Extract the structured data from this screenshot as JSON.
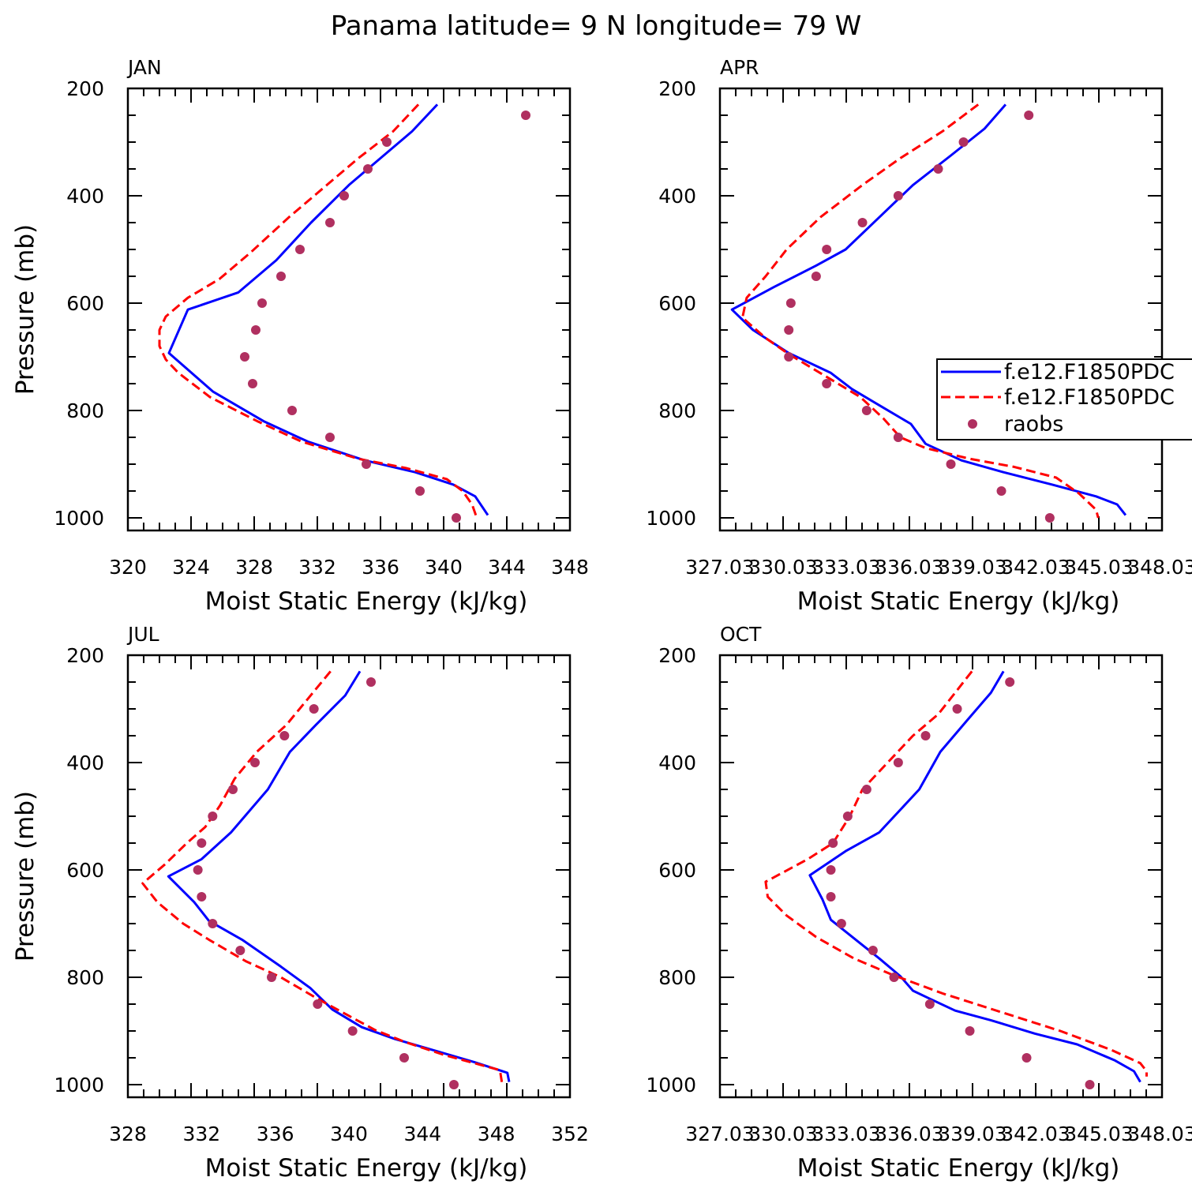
{
  "title": "Panama  latitude= 9 N longitude= 79 W",
  "colors": {
    "model1": "#0000ff",
    "model2": "#ff0000",
    "raobs": "#b03060",
    "frame": "#000000"
  },
  "legend": {
    "placement": "right, inside APR panel",
    "entries": [
      "f.e12.F1850PDC",
      "f.e12.F1850PDC",
      "raobs"
    ]
  },
  "chart_data": [
    {
      "type": "line",
      "panel": "JAN",
      "title": "JAN",
      "xlabel": "Moist Static Energy (kJ/kg)",
      "ylabel": "Pressure (mb)",
      "xlim": [
        320,
        348
      ],
      "ylim": [
        1000,
        200
      ],
      "xticks": [
        "320",
        "324",
        "328",
        "332",
        "336",
        "340",
        "344",
        "348"
      ],
      "yticks": [
        "200",
        "400",
        "600",
        "800",
        "1000"
      ],
      "series": [
        {
          "name": "f.e12.F1850PDC",
          "style": "solid-blue",
          "points": [
            [
              339.6,
              230
            ],
            [
              338,
              280
            ],
            [
              336,
              330
            ],
            [
              334,
              380
            ],
            [
              331.6,
              450
            ],
            [
              329.4,
              520
            ],
            [
              327,
              580
            ],
            [
              323.8,
              612
            ],
            [
              322.6,
              693
            ],
            [
              325.4,
              765
            ],
            [
              328.6,
              820
            ],
            [
              331.4,
              858
            ],
            [
              335,
              893
            ],
            [
              338.2,
              915
            ],
            [
              340.6,
              938
            ],
            [
              342,
              960
            ],
            [
              342.8,
              995
            ]
          ]
        },
        {
          "name": "f.e12.F1850PDC",
          "style": "dashed-red",
          "points": [
            [
              338.4,
              230
            ],
            [
              336.8,
              280
            ],
            [
              334.6,
              330
            ],
            [
              332.6,
              380
            ],
            [
              330.2,
              440
            ],
            [
              327.8,
              505
            ],
            [
              325.8,
              555
            ],
            [
              323.8,
              590
            ],
            [
              322.4,
              625
            ],
            [
              322,
              650
            ],
            [
              322,
              680
            ],
            [
              322.4,
              705
            ],
            [
              323.2,
              730
            ],
            [
              325.2,
              775
            ],
            [
              328.2,
              820
            ],
            [
              331,
              858
            ],
            [
              334.6,
              890
            ],
            [
              337.6,
              907
            ],
            [
              340.2,
              928
            ],
            [
              341.2,
              950
            ],
            [
              341.8,
              975
            ],
            [
              342.1,
              1000
            ]
          ]
        },
        {
          "name": "raobs",
          "style": "dots",
          "points": [
            [
              345.2,
              250
            ],
            [
              336.4,
              300
            ],
            [
              335.2,
              350
            ],
            [
              333.7,
              400
            ],
            [
              332.8,
              450
            ],
            [
              330.9,
              500
            ],
            [
              329.7,
              550
            ],
            [
              328.5,
              600
            ],
            [
              328.1,
              650
            ],
            [
              327.4,
              700
            ],
            [
              327.9,
              750
            ],
            [
              330.4,
              800
            ],
            [
              332.8,
              850
            ],
            [
              335.1,
              900
            ],
            [
              338.5,
              950
            ],
            [
              340.8,
              1000
            ]
          ]
        }
      ]
    },
    {
      "type": "line",
      "panel": "APR",
      "title": "APR",
      "xlabel": "Moist Static Energy (kJ/kg)",
      "ylabel": "",
      "xlim": [
        327.03,
        348.03
      ],
      "ylim": [
        1000,
        200
      ],
      "xticks": [
        "327.03",
        "330.03",
        "333.03",
        "336.03",
        "339.03",
        "342.03",
        "345.03",
        "348.03"
      ],
      "yticks": [
        "200",
        "400",
        "600",
        "800",
        "1000"
      ],
      "series": [
        {
          "name": "f.e12.F1850PDC",
          "style": "solid-blue",
          "points": [
            [
              340.6,
              230
            ],
            [
              339.6,
              275
            ],
            [
              338,
              325
            ],
            [
              336.2,
              380
            ],
            [
              334.6,
              440
            ],
            [
              333,
              500
            ],
            [
              331.6,
              530
            ],
            [
              329.6,
              570
            ],
            [
              327.6,
              612
            ],
            [
              328.6,
              650
            ],
            [
              330.3,
              693
            ],
            [
              332.3,
              730
            ],
            [
              333.3,
              760
            ],
            [
              334.8,
              795
            ],
            [
              336.1,
              825
            ],
            [
              336.8,
              862
            ],
            [
              338.5,
              893
            ],
            [
              340.5,
              915
            ],
            [
              342.8,
              938
            ],
            [
              344.9,
              960
            ],
            [
              345.9,
              975
            ],
            [
              346.3,
              995
            ]
          ]
        },
        {
          "name": "f.e12.F1850PDC",
          "style": "dashed-red",
          "points": [
            [
              339.3,
              230
            ],
            [
              337.6,
              280
            ],
            [
              335.6,
              330
            ],
            [
              333.8,
              380
            ],
            [
              331.8,
              440
            ],
            [
              330.2,
              500
            ],
            [
              329.2,
              550
            ],
            [
              328.3,
              590
            ],
            [
              328.1,
              627
            ],
            [
              329.2,
              665
            ],
            [
              330.3,
              695
            ],
            [
              332,
              735
            ],
            [
              333.7,
              775
            ],
            [
              334.8,
              815
            ],
            [
              335.6,
              850
            ],
            [
              336.8,
              870
            ],
            [
              338.9,
              890
            ],
            [
              341,
              905
            ],
            [
              343,
              925
            ],
            [
              344.1,
              955
            ],
            [
              344.9,
              985
            ],
            [
              345,
              1000
            ]
          ]
        },
        {
          "name": "raobs",
          "style": "dots",
          "points": [
            [
              341.7,
              250
            ],
            [
              338.6,
              300
            ],
            [
              337.4,
              350
            ],
            [
              335.5,
              400
            ],
            [
              333.8,
              450
            ],
            [
              332.1,
              500
            ],
            [
              331.6,
              550
            ],
            [
              330.4,
              600
            ],
            [
              330.3,
              650
            ],
            [
              330.3,
              700
            ],
            [
              332.1,
              750
            ],
            [
              334,
              800
            ],
            [
              335.5,
              850
            ],
            [
              338,
              900
            ],
            [
              340.4,
              950
            ],
            [
              342.7,
              1000
            ]
          ]
        }
      ]
    },
    {
      "type": "line",
      "panel": "JUL",
      "title": "JUL",
      "xlabel": "Moist Static Energy (kJ/kg)",
      "ylabel": "Pressure (mb)",
      "xlim": [
        328,
        352
      ],
      "ylim": [
        1000,
        200
      ],
      "xticks": [
        "328",
        "332",
        "336",
        "340",
        "344",
        "348",
        "352"
      ],
      "yticks": [
        "200",
        "400",
        "600",
        "800",
        "1000"
      ],
      "series": [
        {
          "name": "f.e12.F1850PDC",
          "style": "solid-blue",
          "points": [
            [
              340.6,
              230
            ],
            [
              339.8,
              275
            ],
            [
              338.2,
              330
            ],
            [
              336.8,
              380
            ],
            [
              335.6,
              450
            ],
            [
              333.6,
              530
            ],
            [
              332,
              580
            ],
            [
              330.2,
              612
            ],
            [
              331.6,
              660
            ],
            [
              332.4,
              695
            ],
            [
              334.2,
              730
            ],
            [
              336.3,
              780
            ],
            [
              337.9,
              820
            ],
            [
              339.1,
              860
            ],
            [
              340.7,
              893
            ],
            [
              342.5,
              915
            ],
            [
              344.8,
              938
            ],
            [
              346.8,
              958
            ],
            [
              348.6,
              978
            ],
            [
              348.7,
              995
            ]
          ]
        },
        {
          "name": "f.e12.F1850PDC",
          "style": "dashed-red",
          "points": [
            [
              339,
              230
            ],
            [
              337.8,
              280
            ],
            [
              336.6,
              330
            ],
            [
              335,
              380
            ],
            [
              333.8,
              430
            ],
            [
              333,
              480
            ],
            [
              332.2,
              520
            ],
            [
              331.2,
              550
            ],
            [
              330,
              590
            ],
            [
              328.8,
              625
            ],
            [
              329.6,
              660
            ],
            [
              331,
              700
            ],
            [
              332.4,
              730
            ],
            [
              334.4,
              770
            ],
            [
              336.3,
              800
            ],
            [
              338.3,
              840
            ],
            [
              339.9,
              870
            ],
            [
              341.4,
              898
            ],
            [
              343,
              920
            ],
            [
              345.2,
              945
            ],
            [
              348.2,
              973
            ],
            [
              348.3,
              995
            ]
          ]
        },
        {
          "name": "raobs",
          "style": "dots",
          "points": [
            [
              341.2,
              250
            ],
            [
              338.1,
              300
            ],
            [
              336.5,
              350
            ],
            [
              334.9,
              400
            ],
            [
              333.7,
              450
            ],
            [
              332.6,
              500
            ],
            [
              332,
              550
            ],
            [
              331.8,
              600
            ],
            [
              332,
              650
            ],
            [
              332.6,
              700
            ],
            [
              334.1,
              750
            ],
            [
              335.8,
              800
            ],
            [
              338.3,
              850
            ],
            [
              340.2,
              900
            ],
            [
              343,
              950
            ],
            [
              345.7,
              1000
            ]
          ]
        }
      ]
    },
    {
      "type": "line",
      "panel": "OCT",
      "title": "OCT",
      "xlabel": "Moist Static Energy (kJ/kg)",
      "ylabel": "",
      "xlim": [
        327.03,
        348.03
      ],
      "ylim": [
        1000,
        200
      ],
      "xticks": [
        "327.03",
        "330.03",
        "333.03",
        "336.03",
        "339.03",
        "342.03",
        "345.03",
        "348.03"
      ],
      "yticks": [
        "200",
        "400",
        "600",
        "800",
        "1000"
      ],
      "series": [
        {
          "name": "f.e12.F1850PDC",
          "style": "solid-blue",
          "points": [
            [
              340.5,
              230
            ],
            [
              339.9,
              270
            ],
            [
              338.8,
              320
            ],
            [
              337.5,
              380
            ],
            [
              336.5,
              450
            ],
            [
              334.6,
              530
            ],
            [
              333,
              565
            ],
            [
              331.3,
              610
            ],
            [
              331.9,
              655
            ],
            [
              332.3,
              693
            ],
            [
              333.8,
              740
            ],
            [
              334.6,
              765
            ],
            [
              335.6,
              798
            ],
            [
              336.2,
              825
            ],
            [
              337,
              840
            ],
            [
              338.2,
              862
            ],
            [
              339.9,
              880
            ],
            [
              342,
              905
            ],
            [
              344,
              925
            ],
            [
              345.8,
              955
            ],
            [
              346.7,
              975
            ],
            [
              347,
              995
            ]
          ]
        },
        {
          "name": "f.e12.F1850PDC",
          "style": "dashed-red",
          "points": [
            [
              339,
              230
            ],
            [
              338.2,
              270
            ],
            [
              337.4,
              310
            ],
            [
              336.2,
              350
            ],
            [
              335,
              400
            ],
            [
              333.8,
              450
            ],
            [
              333.2,
              500
            ],
            [
              332.4,
              550
            ],
            [
              331.2,
              580
            ],
            [
              329.2,
              622
            ],
            [
              329.3,
              650
            ],
            [
              330.2,
              685
            ],
            [
              331.6,
              725
            ],
            [
              333.4,
              765
            ],
            [
              335.2,
              795
            ],
            [
              337.6,
              830
            ],
            [
              340.4,
              865
            ],
            [
              343.2,
              900
            ],
            [
              345.6,
              935
            ],
            [
              347,
              960
            ],
            [
              347.3,
              975
            ],
            [
              347.3,
              985
            ]
          ]
        },
        {
          "name": "raobs",
          "style": "dots",
          "points": [
            [
              340.8,
              250
            ],
            [
              338.3,
              300
            ],
            [
              336.8,
              350
            ],
            [
              335.5,
              400
            ],
            [
              334,
              450
            ],
            [
              333.1,
              500
            ],
            [
              332.4,
              550
            ],
            [
              332.3,
              600
            ],
            [
              332.3,
              650
            ],
            [
              332.8,
              700
            ],
            [
              334.3,
              750
            ],
            [
              335.3,
              800
            ],
            [
              337,
              850
            ],
            [
              338.9,
              900
            ],
            [
              341.6,
              950
            ],
            [
              344.6,
              1000
            ]
          ]
        }
      ]
    }
  ]
}
